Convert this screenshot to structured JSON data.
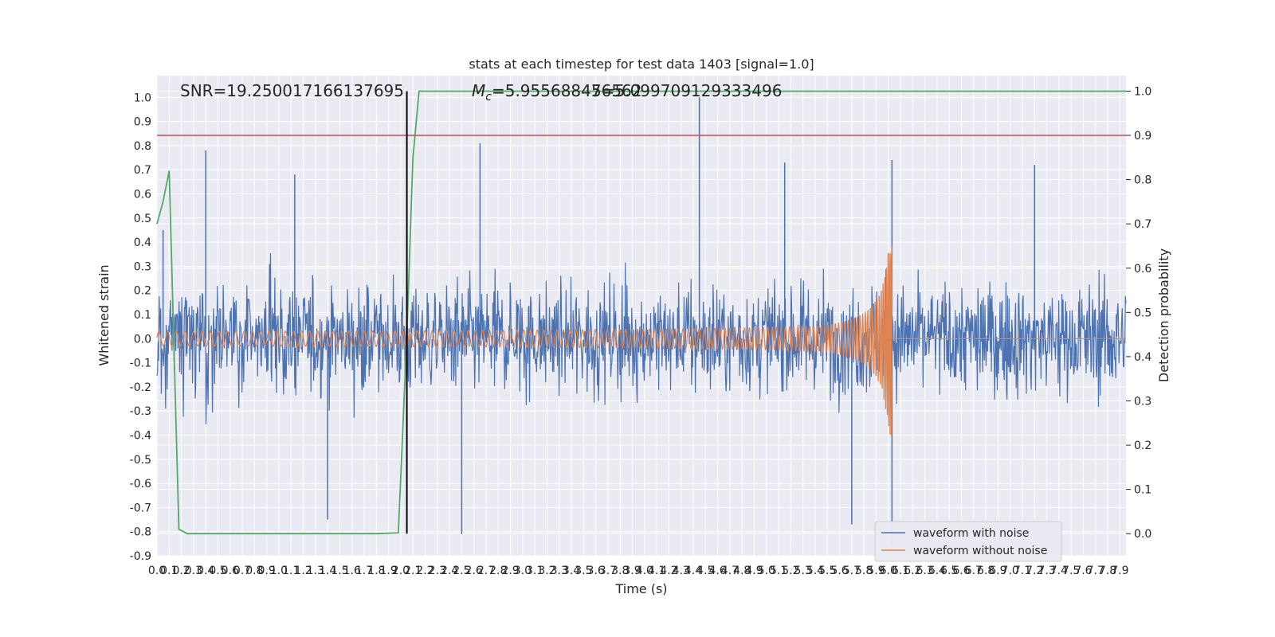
{
  "chart_data": {
    "type": "line",
    "title": "stats at each timestep for test data 1403 [signal=1.0]",
    "xlabel": "Time (s)",
    "ylabel": "Whitened strain",
    "y2label": "Detection probability",
    "xlim": [
      0.0,
      7.95
    ],
    "ylim": [
      -0.9,
      1.09
    ],
    "y2lim": [
      -0.05,
      1.035
    ],
    "grid": true,
    "legend_position": "lower-right",
    "x_ticks": [
      "0.0",
      "0.1",
      "0.2",
      "0.3",
      "0.4",
      "0.5",
      "0.6",
      "0.7",
      "0.8",
      "0.9",
      "1.0",
      "1.1",
      "1.2",
      "1.3",
      "1.4",
      "1.5",
      "1.6",
      "1.7",
      "1.8",
      "1.9",
      "2.0",
      "2.1",
      "2.2",
      "2.3",
      "2.4",
      "2.5",
      "2.6",
      "2.7",
      "2.8",
      "2.9",
      "3.0",
      "3.1",
      "3.2",
      "3.3",
      "3.4",
      "3.5",
      "3.6",
      "3.7",
      "3.8",
      "3.9",
      "4.0",
      "4.1",
      "4.2",
      "4.3",
      "4.4",
      "4.5",
      "4.6",
      "4.7",
      "4.8",
      "4.9",
      "5.0",
      "5.1",
      "5.2",
      "5.3",
      "5.4",
      "5.5",
      "5.6",
      "5.7",
      "5.8",
      "5.9",
      "6.0",
      "6.1",
      "6.2",
      "6.3",
      "6.4",
      "6.5",
      "6.6",
      "6.7",
      "6.8",
      "6.9",
      "7.0",
      "7.1",
      "7.2",
      "7.3",
      "7.4",
      "7.5",
      "7.6",
      "7.7",
      "7.8",
      "7.9"
    ],
    "y_ticks": [
      "1.0",
      "0.9",
      "0.8",
      "0.7",
      "0.6",
      "0.5",
      "0.4",
      "0.3",
      "0.2",
      "0.1",
      "0.0",
      "-0.1",
      "-0.2",
      "-0.3",
      "-0.4",
      "-0.5",
      "-0.6",
      "-0.7",
      "-0.8",
      "-0.9"
    ],
    "y2_ticks": [
      "1.0",
      "0.9",
      "0.8",
      "0.7",
      "0.6",
      "0.5",
      "0.4",
      "0.3",
      "0.2",
      "0.1",
      "0.0"
    ],
    "annotations": {
      "snr": "SNR=19.250017166137695",
      "mc_prefix": "M",
      "mc_sub": "c",
      "mc_value": "=5.955688476562",
      "overlap": "5=5.099709129333496"
    },
    "series": [
      {
        "name": "waveform with noise",
        "color": "#4c72b0",
        "axis": "left",
        "description": "noise band approx between -0.5 and 0.45 with spikes",
        "spikes": [
          {
            "x": 0.05,
            "y": 0.45
          },
          {
            "x": 0.4,
            "y": 0.78
          },
          {
            "x": 1.13,
            "y": 0.68
          },
          {
            "x": 2.65,
            "y": 0.81
          },
          {
            "x": 4.45,
            "y": 1.0
          },
          {
            "x": 5.15,
            "y": 0.73
          },
          {
            "x": 6.03,
            "y": 0.74
          },
          {
            "x": 7.2,
            "y": 0.72
          },
          {
            "x": 2.5,
            "y": -0.81
          },
          {
            "x": 5.7,
            "y": -0.77
          },
          {
            "x": 6.03,
            "y": -0.85
          },
          {
            "x": 1.4,
            "y": -0.75
          }
        ]
      },
      {
        "name": "waveform without noise",
        "color": "#dd8452",
        "axis": "left",
        "description": "chirp, amplitude ~0.03 growing to ~0.4 at merger t=6.03 then ~0",
        "merger_time": 6.03,
        "peak_amplitude": 0.4
      },
      {
        "name": "",
        "color": "#55a868",
        "axis": "right",
        "x": [
          0.0,
          0.05,
          0.1,
          0.18,
          0.25,
          0.5,
          1.0,
          1.5,
          1.8,
          1.98,
          2.05,
          2.1,
          2.15,
          2.5,
          4.0,
          6.0,
          7.95
        ],
        "values": [
          0.7,
          0.75,
          0.82,
          0.01,
          0.0,
          0.0,
          0.0,
          0.0,
          0.0,
          0.002,
          0.45,
          0.85,
          1.0,
          1.0,
          1.0,
          1.0,
          1.0
        ]
      }
    ],
    "threshold_line": {
      "axis": "right",
      "y": 0.9,
      "color": "#c44e52"
    },
    "vertical_line": {
      "x": 2.05,
      "color": "#000000"
    },
    "legend": [
      "waveform with noise",
      "waveform without noise"
    ]
  }
}
